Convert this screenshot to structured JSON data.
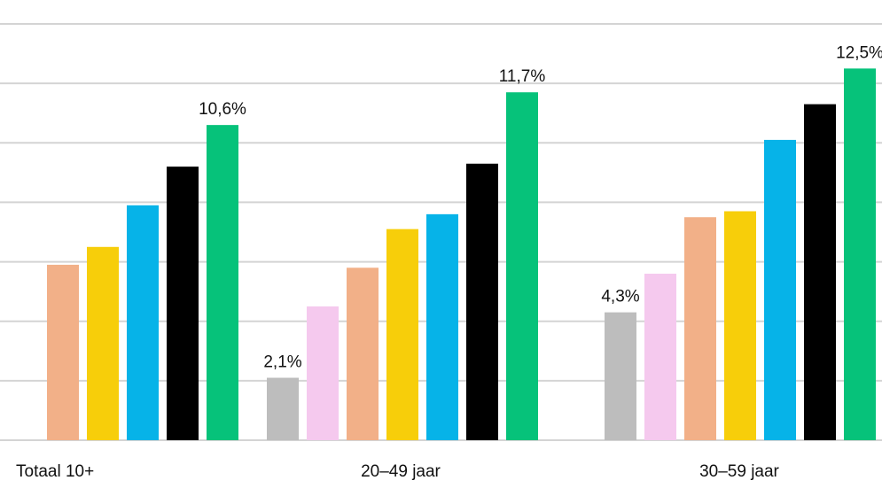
{
  "chart_data": {
    "type": "bar",
    "categories": [
      "Totaal 10+",
      "20-49 jaar",
      "30-59 jaar"
    ],
    "category_labels": [
      "Totaal 10+",
      "20–49 jaar",
      "30–59 jaar"
    ],
    "series_colors": [
      "#BDBDBD",
      "#F5C9EE",
      "#F2B088",
      "#F7CE0A",
      "#06B3E8",
      "#000000",
      "#06C27A"
    ],
    "groups": [
      {
        "values": [
          null,
          null,
          5.9,
          6.5,
          7.9,
          9.2,
          10.6
        ]
      },
      {
        "values": [
          2.1,
          4.5,
          5.8,
          7.1,
          7.6,
          9.3,
          11.7
        ]
      },
      {
        "values": [
          4.3,
          5.6,
          7.5,
          7.7,
          10.1,
          11.3,
          12.5
        ]
      }
    ],
    "data_labels": [
      {
        "group": 0,
        "series": 6,
        "text": "10,6%"
      },
      {
        "group": 1,
        "series": 0,
        "text": "2,1%"
      },
      {
        "group": 1,
        "series": 6,
        "text": "11,7%"
      },
      {
        "group": 2,
        "series": 0,
        "text": "4,3%"
      },
      {
        "group": 2,
        "series": 6,
        "text": "12,5%"
      }
    ],
    "ylim": [
      0,
      14
    ],
    "grid": true,
    "gridline_step": 2,
    "xlabel": "",
    "ylabel": "",
    "title": ""
  }
}
